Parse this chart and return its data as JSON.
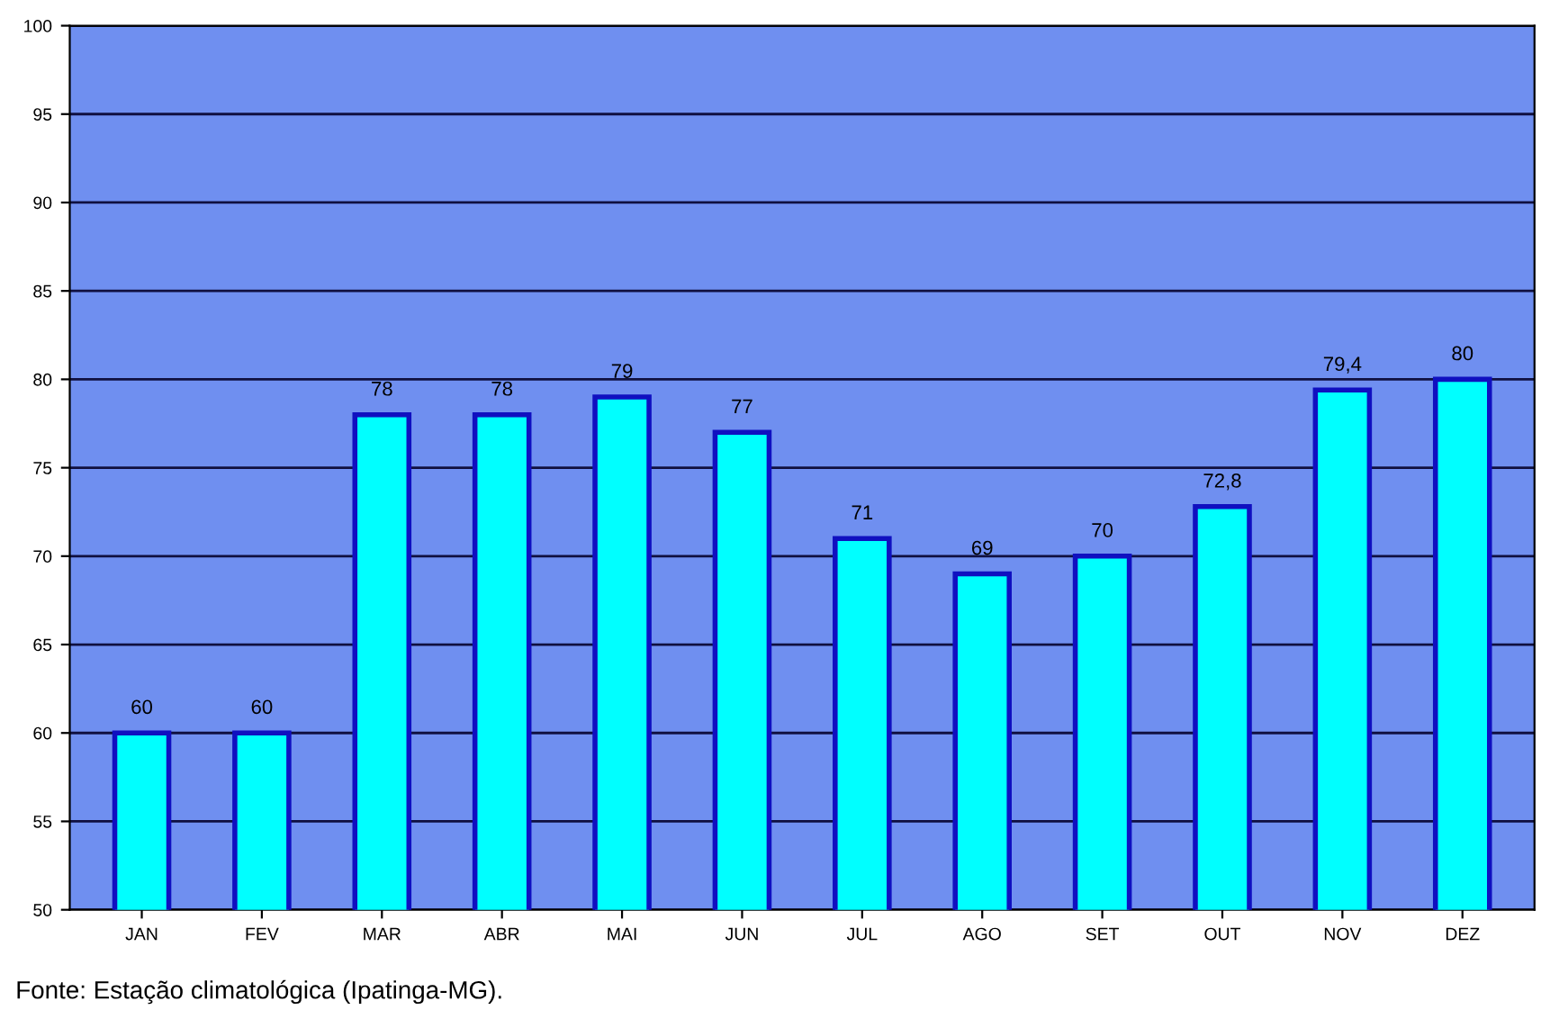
{
  "chart_data": {
    "type": "bar",
    "categories": [
      "JAN",
      "FEV",
      "MAR",
      "ABR",
      "MAI",
      "JUN",
      "JUL",
      "AGO",
      "SET",
      "OUT",
      "NOV",
      "DEZ"
    ],
    "values": [
      60,
      60,
      78,
      78,
      79,
      77,
      71,
      69,
      70,
      72.8,
      79.4,
      80
    ],
    "value_labels": [
      "60",
      "60",
      "78",
      "78",
      "79",
      "77",
      "71",
      "69",
      "70",
      "72,8",
      "79,4",
      "80"
    ],
    "color": "#00ffff",
    "ylim": [
      50,
      100
    ],
    "yticks": [
      50,
      55,
      60,
      65,
      70,
      75,
      80,
      85,
      90,
      95,
      100
    ],
    "grid": "y",
    "annotations": [
      "Fonte: Estação climatológica (Ipatinga-MG)."
    ]
  }
}
